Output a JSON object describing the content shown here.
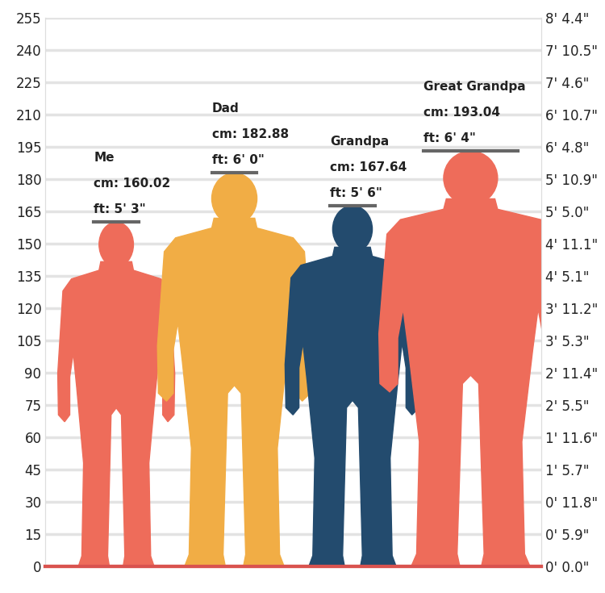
{
  "chart_data": {
    "type": "bar",
    "categories": [
      "Me",
      "Dad",
      "Grandpa",
      "Great Grandpa"
    ],
    "values": [
      160.02,
      182.88,
      167.64,
      193.04
    ],
    "value_labels": [
      "cm: 160.02",
      "cm: 182.88",
      "cm: 167.64",
      "cm: 193.04"
    ],
    "feet_labels": [
      "ft: 5' 3\"",
      "ft: 6' 0\"",
      "ft: 5' 6\"",
      "ft: 6' 4\""
    ],
    "colors": [
      "#ee6c5a",
      "#f1ad45",
      "#234b6e",
      "#ee6c5a"
    ],
    "data_labels": true,
    "ylim": [
      0,
      255
    ],
    "yticks": [
      0,
      15,
      30,
      45,
      60,
      75,
      90,
      105,
      120,
      135,
      150,
      165,
      180,
      195,
      210,
      225,
      240,
      255
    ],
    "y2lim": [
      0,
      255
    ],
    "y2ticks": [
      {
        "value": 0,
        "label": "0' 0.0\""
      },
      {
        "value": 15,
        "label": "0' 5.9\""
      },
      {
        "value": 30,
        "label": "0' 11.8\""
      },
      {
        "value": 45,
        "label": "1' 5.7\""
      },
      {
        "value": 60,
        "label": "1' 11.6\""
      },
      {
        "value": 75,
        "label": "2' 5.5\""
      },
      {
        "value": 90,
        "label": "2' 11.4\""
      },
      {
        "value": 105,
        "label": "3' 5.3\""
      },
      {
        "value": 120,
        "label": "3' 11.2\""
      },
      {
        "value": 135,
        "label": "4' 5.1\""
      },
      {
        "value": 150,
        "label": "4' 11.1\""
      },
      {
        "value": 165,
        "label": "5' 5.0\""
      },
      {
        "value": 180,
        "label": "5' 10.9\""
      },
      {
        "value": 195,
        "label": "6' 4.8\""
      },
      {
        "value": 210,
        "label": "6' 10.7\""
      },
      {
        "value": 225,
        "label": "7' 4.6\""
      },
      {
        "value": 240,
        "label": "7' 10.5\""
      },
      {
        "value": 255,
        "label": "8' 4.4\""
      }
    ],
    "grid": true
  }
}
